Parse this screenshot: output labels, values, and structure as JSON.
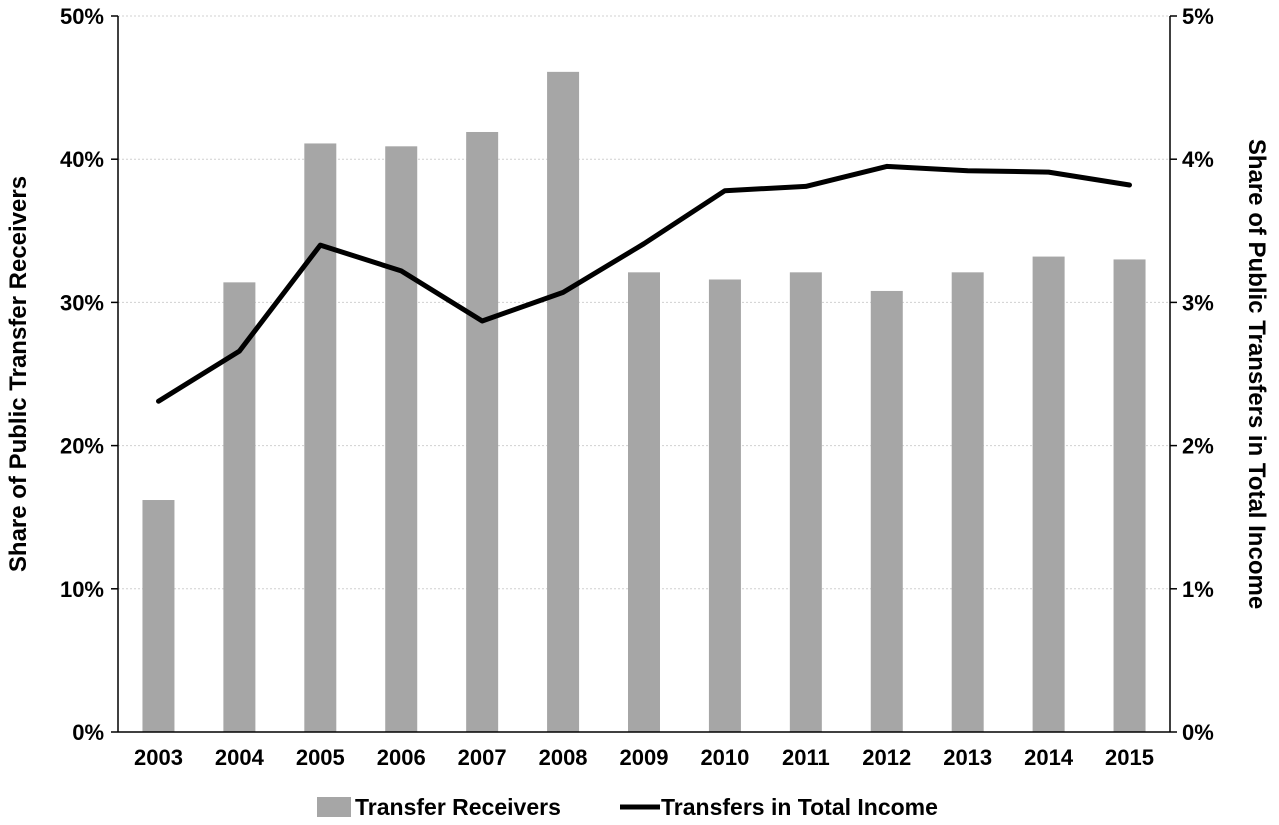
{
  "chart_data": {
    "type": "bar",
    "categories": [
      "2003",
      "2004",
      "2005",
      "2006",
      "2007",
      "2008",
      "2009",
      "2010",
      "2011",
      "2012",
      "2013",
      "2014",
      "2015"
    ],
    "series": [
      {
        "name": "Transfer Receivers",
        "kind": "bar",
        "axis": "left",
        "color": "#a6a6a6",
        "values": [
          16.2,
          31.4,
          41.1,
          40.9,
          41.9,
          46.1,
          32.1,
          31.6,
          32.1,
          30.8,
          32.1,
          33.2,
          33.0
        ]
      },
      {
        "name": "Transfers in Total Income",
        "kind": "line",
        "axis": "right",
        "color": "#000000",
        "values": [
          2.31,
          2.66,
          3.4,
          3.22,
          2.87,
          3.07,
          3.41,
          3.78,
          3.81,
          3.95,
          3.92,
          3.91,
          3.82
        ]
      }
    ],
    "ylabel_left": "Share of Public Transfer Receivers",
    "ylabel_right": "Share of Public Transfers in Total Income",
    "ylim_left": [
      0,
      50
    ],
    "ylim_right": [
      0,
      5
    ],
    "yticks_left": [
      "0%",
      "10%",
      "20%",
      "30%",
      "40%",
      "50%"
    ],
    "yticks_right": [
      "0%",
      "1%",
      "2%",
      "3%",
      "4%",
      "5%"
    ],
    "grid": true,
    "legend_position": "bottom"
  }
}
